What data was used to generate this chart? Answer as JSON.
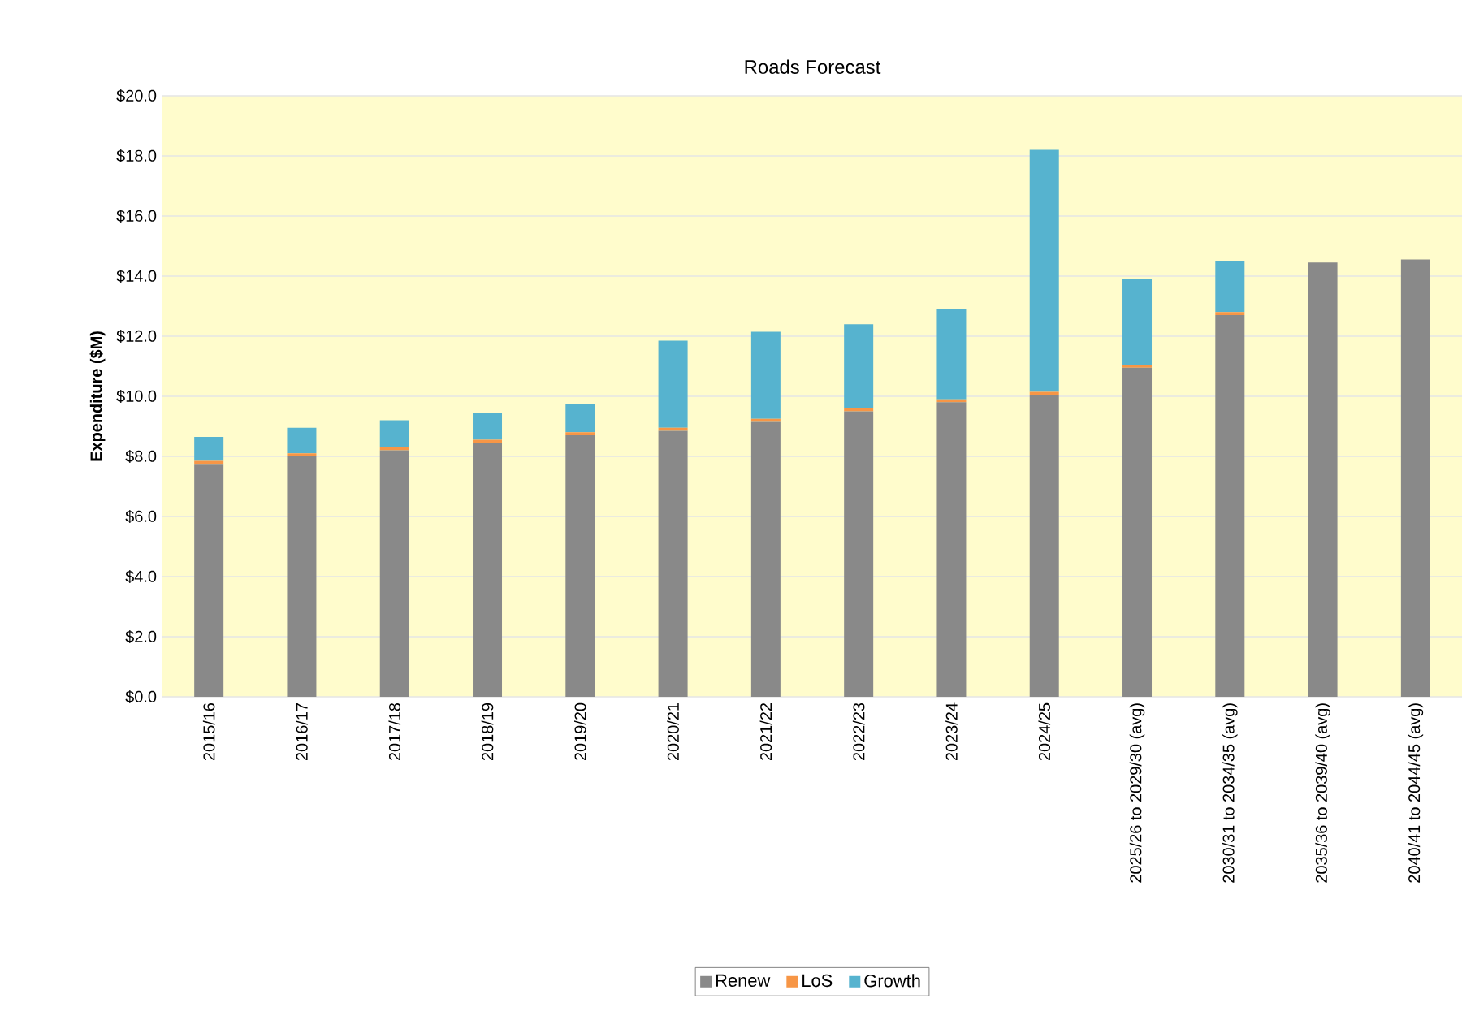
{
  "chart_data": {
    "type": "bar",
    "title": "Roads Forecast",
    "ylabel": "Expenditure ($M)",
    "stacked": true,
    "grid": "y",
    "legend": "bottom",
    "categories": [
      "2015/16",
      "2016/17",
      "2017/18",
      "2018/19",
      "2019/20",
      "2020/21",
      "2021/22",
      "2022/23",
      "2023/24",
      "2024/25",
      "2025/26 to 2029/30 (avg)",
      "2030/31 to 2034/35 (avg)",
      "2035/36 to 2039/40 (avg)",
      "2040/41 to 2044/45 (avg)"
    ],
    "series": [
      {
        "name": "Renew",
        "color": "#898989",
        "values": [
          7.75,
          8.0,
          8.2,
          8.45,
          8.7,
          8.85,
          9.15,
          9.5,
          9.8,
          10.05,
          10.95,
          12.7,
          14.45,
          14.55
        ]
      },
      {
        "name": "LoS",
        "color": "#f79646",
        "values": [
          0.1,
          0.1,
          0.1,
          0.1,
          0.1,
          0.1,
          0.1,
          0.1,
          0.1,
          0.1,
          0.1,
          0.1,
          0,
          0
        ]
      },
      {
        "name": "Growth",
        "color": "#56b3cf",
        "values": [
          0.8,
          0.85,
          0.9,
          0.9,
          0.95,
          2.9,
          2.9,
          2.8,
          3.0,
          8.05,
          2.85,
          1.7,
          0,
          0
        ]
      }
    ],
    "ylim": [
      0,
      20
    ],
    "yticks": [
      {
        "value": 0,
        "label": "$0.0"
      },
      {
        "value": 2,
        "label": "$2.0"
      },
      {
        "value": 4,
        "label": "$4.0"
      },
      {
        "value": 6,
        "label": "$6.0"
      },
      {
        "value": 8,
        "label": "$8.0"
      },
      {
        "value": 10,
        "label": "$10.0"
      },
      {
        "value": 12,
        "label": "$12.0"
      },
      {
        "value": 14,
        "label": "$14.0"
      },
      {
        "value": 16,
        "label": "$16.0"
      },
      {
        "value": 18,
        "label": "$18.0"
      },
      {
        "value": 20,
        "label": "$20.0"
      }
    ]
  }
}
